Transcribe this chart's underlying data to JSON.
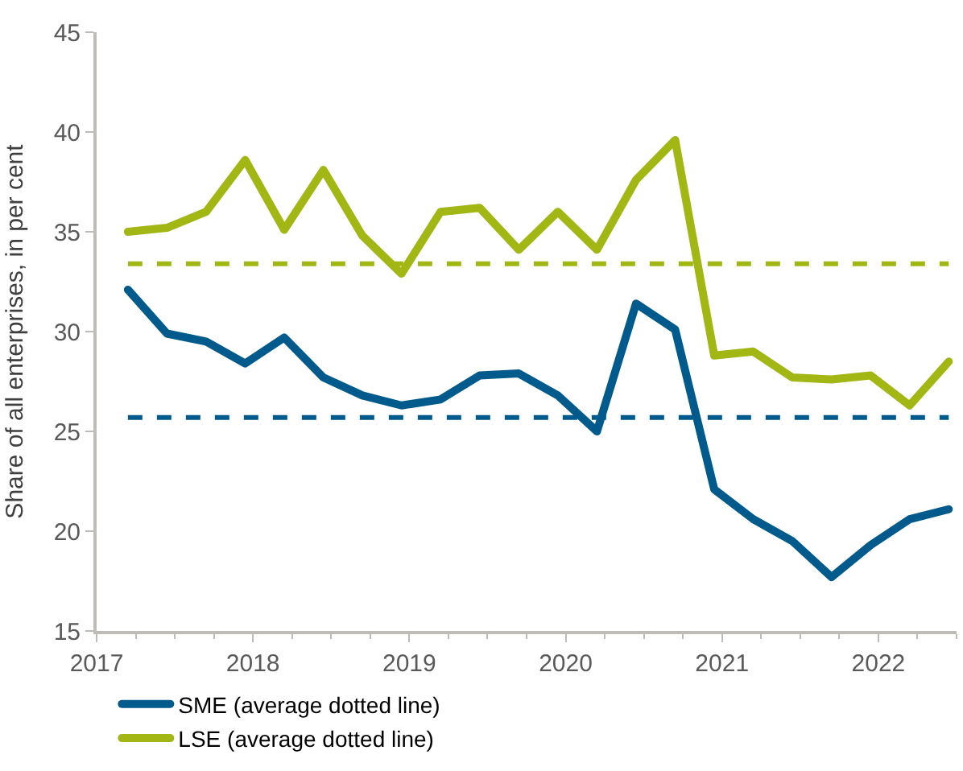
{
  "chart_data": {
    "type": "line",
    "ylabel": "Share of all enterprises, in per cent",
    "x": [
      2017.2,
      2017.45,
      2017.7,
      2017.95,
      2018.2,
      2018.45,
      2018.7,
      2018.95,
      2019.2,
      2019.45,
      2019.7,
      2019.95,
      2020.2,
      2020.45,
      2020.7,
      2020.95,
      2021.2,
      2021.45,
      2021.7,
      2021.95,
      2022.2,
      2022.45
    ],
    "series": [
      {
        "name": "SME (average dotted line)",
        "color": "#005b8c",
        "values": [
          32.1,
          29.9,
          29.5,
          28.4,
          29.7,
          27.7,
          26.8,
          26.3,
          26.6,
          27.8,
          27.9,
          26.8,
          25.0,
          31.4,
          30.1,
          22.1,
          20.6,
          19.5,
          17.7,
          19.3,
          20.6,
          21.1
        ]
      },
      {
        "name": "LSE (average dotted line)",
        "color": "#a2b614",
        "values": [
          35.0,
          35.2,
          36.0,
          38.6,
          35.1,
          38.1,
          34.8,
          32.9,
          36.0,
          36.2,
          34.1,
          36.0,
          34.1,
          37.6,
          39.6,
          28.8,
          29.0,
          27.7,
          27.6,
          27.8,
          26.3,
          28.5
        ]
      }
    ],
    "ref_lines": [
      {
        "axis": "y",
        "value": 25.7,
        "color": "#005b8c",
        "line_style": "dashed"
      },
      {
        "axis": "y",
        "value": 33.4,
        "color": "#a2b614",
        "line_style": "dashed"
      }
    ],
    "xlim": [
      2017,
      2022.5
    ],
    "xticks": [
      2017,
      2018,
      2019,
      2020,
      2021,
      2022
    ],
    "ylim": [
      15,
      45
    ],
    "yticks": [
      15,
      20,
      25,
      30,
      35,
      40,
      45
    ],
    "legend": "bottom left",
    "marker": "none",
    "line_style": "solid"
  }
}
